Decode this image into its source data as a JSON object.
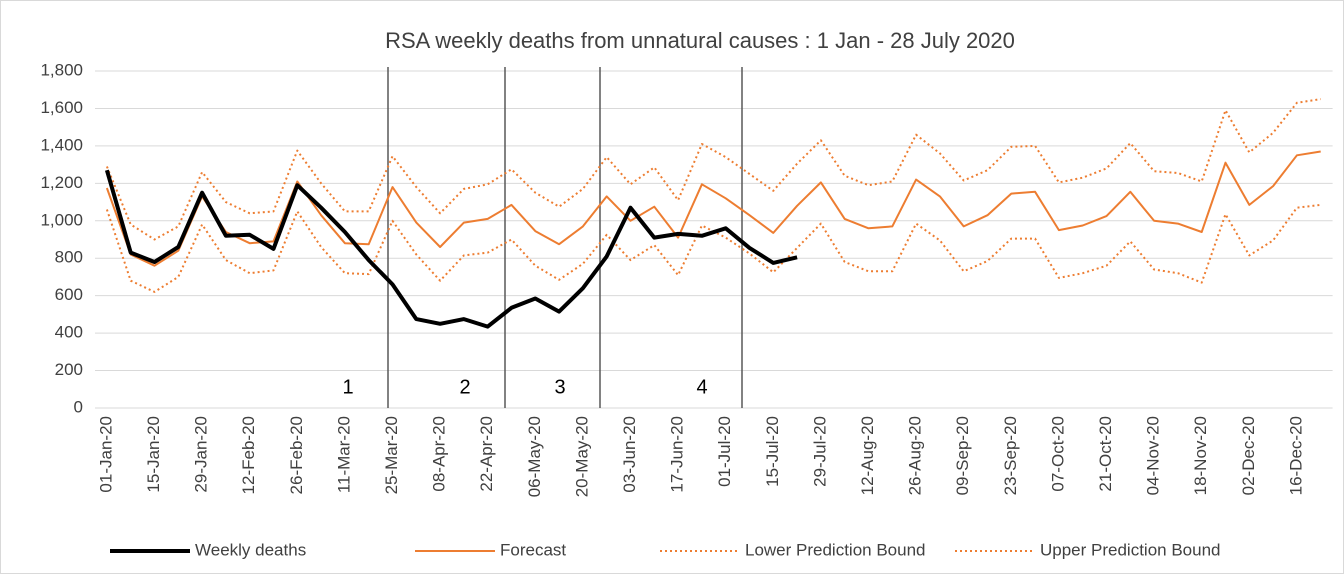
{
  "chart_data": {
    "type": "line",
    "title": "RSA weekly deaths from unnatural causes : 1 Jan - 28 July 2020",
    "categories": [
      "01-Jan-20",
      null,
      "15-Jan-20",
      null,
      "29-Jan-20",
      null,
      "12-Feb-20",
      null,
      "26-Feb-20",
      null,
      "11-Mar-20",
      null,
      "25-Mar-20",
      null,
      "08-Apr-20",
      null,
      "22-Apr-20",
      null,
      "06-May-20",
      null,
      "20-May-20",
      null,
      "03-Jun-20",
      null,
      "17-Jun-20",
      null,
      "01-Jul-20",
      null,
      "15-Jul-20",
      null,
      "29-Jul-20",
      null,
      "12-Aug-20",
      null,
      "26-Aug-20",
      null,
      "09-Sep-20",
      null,
      "23-Sep-20",
      null,
      "07-Oct-20",
      null,
      "21-Oct-20",
      null,
      "04-Nov-20",
      null,
      "18-Nov-20",
      null,
      "02-Dec-20",
      null,
      "16-Dec-20",
      null
    ],
    "series": [
      {
        "name": "Weekly deaths",
        "color": "#000000",
        "width": 4,
        "dash": "solid",
        "values": [
          1270,
          830,
          780,
          860,
          1150,
          920,
          925,
          850,
          1190,
          1070,
          940,
          790,
          660,
          475,
          450,
          475,
          435,
          535,
          585,
          515,
          640,
          810,
          1070,
          910,
          930,
          920,
          960,
          855,
          775,
          805,
          null,
          null,
          null,
          null,
          null,
          null,
          null,
          null,
          null,
          null,
          null,
          null,
          null,
          null,
          null,
          null,
          null,
          null,
          null,
          null,
          null,
          null
        ]
      },
      {
        "name": "Forecast",
        "color": "#ed7d31",
        "width": 2,
        "dash": "solid",
        "values": [
          1175,
          820,
          760,
          840,
          1130,
          940,
          880,
          890,
          1210,
          1030,
          880,
          875,
          1180,
          990,
          860,
          990,
          1010,
          1085,
          945,
          875,
          970,
          1130,
          1000,
          1075,
          910,
          1195,
          1120,
          1030,
          935,
          1080,
          1205,
          1010,
          960,
          970,
          1220,
          1130,
          970,
          1030,
          1145,
          1155,
          950,
          975,
          1025,
          1155,
          1000,
          985,
          940,
          1310,
          1085,
          1185,
          1350,
          1370
        ]
      },
      {
        "name": "Lower Prediction Bound",
        "color": "#ed7d31",
        "width": 2,
        "dash": "dotted",
        "values": [
          1060,
          680,
          620,
          700,
          980,
          790,
          720,
          735,
          1050,
          860,
          720,
          715,
          1000,
          820,
          680,
          815,
          830,
          900,
          760,
          685,
          770,
          925,
          790,
          870,
          710,
          975,
          910,
          825,
          725,
          855,
          985,
          780,
          730,
          730,
          985,
          895,
          730,
          785,
          905,
          905,
          695,
          720,
          760,
          890,
          740,
          720,
          670,
          1035,
          815,
          895,
          1070,
          1085
        ]
      },
      {
        "name": "Upper Prediction Bound",
        "color": "#ed7d31",
        "width": 2,
        "dash": "dotted",
        "values": [
          1290,
          980,
          900,
          970,
          1260,
          1100,
          1040,
          1050,
          1375,
          1200,
          1050,
          1050,
          1345,
          1180,
          1040,
          1170,
          1195,
          1275,
          1150,
          1075,
          1170,
          1340,
          1195,
          1285,
          1110,
          1410,
          1340,
          1250,
          1160,
          1305,
          1430,
          1240,
          1190,
          1210,
          1460,
          1360,
          1215,
          1270,
          1395,
          1400,
          1205,
          1230,
          1280,
          1415,
          1265,
          1255,
          1210,
          1590,
          1365,
          1470,
          1630,
          1650
        ]
      }
    ],
    "annotations": [
      "1",
      "2",
      "3",
      "4"
    ],
    "ylim": [
      0,
      1800
    ],
    "yticks": [
      0,
      200,
      400,
      600,
      800,
      {
        "value": 1000,
        "label": "1,000"
      },
      {
        "value": 1200,
        "label": "1,200"
      },
      {
        "value": 1400,
        "label": "1,400"
      },
      {
        "value": 1600,
        "label": "1,600"
      },
      {
        "value": 1800,
        "label": "1,800"
      }
    ],
    "grid": true,
    "legend": "bottom"
  }
}
